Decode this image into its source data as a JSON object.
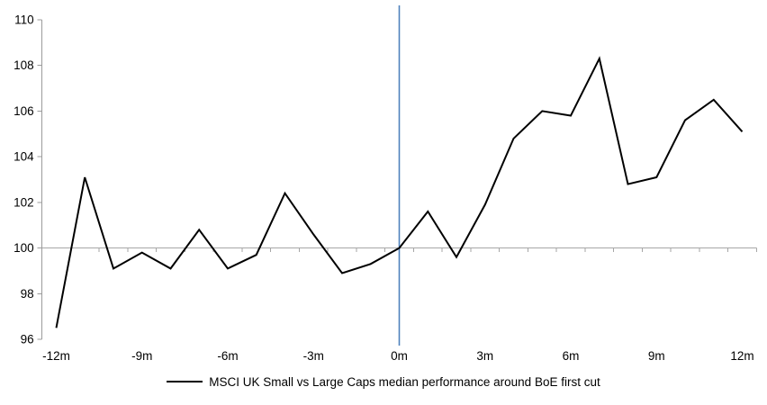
{
  "chart_data": {
    "type": "line",
    "x": [
      -12,
      -11,
      -10,
      -9,
      -8,
      -7,
      -6,
      -5,
      -4,
      -3,
      -2,
      -1,
      0,
      1,
      2,
      3,
      4,
      5,
      6,
      7,
      8,
      9,
      10,
      11,
      12
    ],
    "series": [
      {
        "name": "MSCI UK Small vs Large Caps median performance around BoE first cut",
        "values": [
          96.5,
          103.1,
          99.1,
          99.8,
          99.1,
          100.8,
          99.1,
          99.7,
          102.4,
          100.6,
          98.9,
          99.3,
          100.0,
          101.6,
          99.6,
          101.9,
          104.8,
          106.0,
          105.8,
          108.3,
          102.8,
          103.1,
          105.6,
          106.5,
          105.1
        ]
      }
    ],
    "title": "",
    "xlabel": "",
    "ylabel": "",
    "xlim": [
      -12.5,
      12.5
    ],
    "ylim": [
      96,
      110
    ],
    "y_ticks": [
      96,
      98,
      100,
      102,
      104,
      106,
      108,
      110
    ],
    "x_ticks": [
      {
        "pos": -12,
        "label": "-12m"
      },
      {
        "pos": -9,
        "label": "-9m"
      },
      {
        "pos": -6,
        "label": "-6m"
      },
      {
        "pos": -3,
        "label": "-3m"
      },
      {
        "pos": 0,
        "label": "0m"
      },
      {
        "pos": 3,
        "label": "3m"
      },
      {
        "pos": 6,
        "label": "6m"
      },
      {
        "pos": 9,
        "label": "9m"
      },
      {
        "pos": 12,
        "label": "12m"
      }
    ],
    "baseline_value": 100,
    "event_marker_x": 0,
    "legend_label": "MSCI UK Small vs Large Caps median performance around BoE first cut",
    "legend_position": "bottom-center",
    "grid": "baseline-only",
    "colors": {
      "series": "#000000",
      "event_line": "#4f81bd",
      "baseline": "#a6a6a6",
      "axis": "#9b9b9b",
      "text": "#000000"
    }
  }
}
